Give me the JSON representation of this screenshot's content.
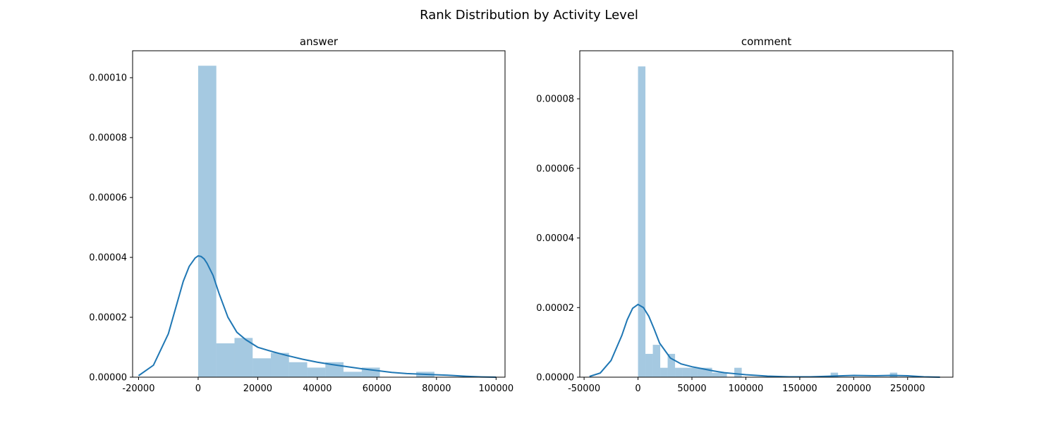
{
  "figure": {
    "title": "Rank Distribution by Activity Level",
    "colors": {
      "bars": "#1f77b4",
      "kde": "#1f77b4"
    }
  },
  "chart_data": [
    {
      "type": "histogram",
      "title": "answer",
      "xlim": [
        -22000,
        103000
      ],
      "ylim": [
        0,
        0.000109
      ],
      "xticks": [
        -20000,
        0,
        20000,
        40000,
        60000,
        80000,
        100000
      ],
      "xtick_labels": [
        "-20000",
        "0",
        "20000",
        "40000",
        "60000",
        "80000",
        "100000"
      ],
      "yticks": [
        0,
        2e-05,
        4e-05,
        6e-05,
        8e-05,
        0.0001
      ],
      "ytick_labels": [
        "0.00000",
        "0.00002",
        "0.00004",
        "0.00006",
        "0.00008",
        "0.00010"
      ],
      "bins": [
        {
          "x0": 0,
          "x1": 6100,
          "density": 0.000104
        },
        {
          "x0": 6100,
          "x1": 12200,
          "density": 1.13e-05
        },
        {
          "x0": 12200,
          "x1": 18300,
          "density": 1.31e-05
        },
        {
          "x0": 18300,
          "x1": 24400,
          "density": 6.3e-06
        },
        {
          "x0": 24400,
          "x1": 30500,
          "density": 8.1e-06
        },
        {
          "x0": 30500,
          "x1": 36600,
          "density": 5e-06
        },
        {
          "x0": 36600,
          "x1": 42700,
          "density": 3.2e-06
        },
        {
          "x0": 42700,
          "x1": 48800,
          "density": 5e-06
        },
        {
          "x0": 48800,
          "x1": 54900,
          "density": 1.8e-06
        },
        {
          "x0": 54900,
          "x1": 61000,
          "density": 3.2e-06
        },
        {
          "x0": 61000,
          "x1": 67100,
          "density": 0.0
        },
        {
          "x0": 67100,
          "x1": 73200,
          "density": 0.0
        },
        {
          "x0": 73200,
          "x1": 79300,
          "density": 1.8e-06
        }
      ],
      "kde": {
        "x": [
          -20000,
          -15000,
          -10000,
          -7000,
          -5000,
          -3000,
          -1000,
          0,
          1000,
          2000,
          3000,
          5000,
          7000,
          10000,
          13000,
          16000,
          20000,
          25000,
          30000,
          35000,
          40000,
          45000,
          50000,
          55000,
          60000,
          65000,
          70000,
          75000,
          80000,
          85000,
          90000,
          95000,
          100000
        ],
        "y": [
          5e-07,
          4e-06,
          1.45e-05,
          2.5e-05,
          3.2e-05,
          3.7e-05,
          3.98e-05,
          4.05e-05,
          4.03e-05,
          3.95e-05,
          3.8e-05,
          3.4e-05,
          2.8e-05,
          2e-05,
          1.5e-05,
          1.25e-05,
          1e-05,
          8.5e-06,
          7.2e-06,
          6e-06,
          5e-06,
          4.2e-06,
          3.5e-06,
          2.8e-06,
          2.2e-06,
          1.6e-06,
          1.2e-06,
          1e-06,
          8e-07,
          6e-07,
          3e-07,
          1e-07,
          0.0
        ]
      }
    },
    {
      "type": "histogram",
      "title": "comment",
      "xlim": [
        -54000,
        292000
      ],
      "ylim": [
        0,
        9.38e-05
      ],
      "xticks": [
        -50000,
        0,
        50000,
        100000,
        150000,
        200000,
        250000
      ],
      "xtick_labels": [
        "-50000",
        "0",
        "50000",
        "100000",
        "150000",
        "200000",
        "250000"
      ],
      "yticks": [
        0,
        2e-05,
        4e-05,
        6e-05,
        8e-05
      ],
      "ytick_labels": [
        "0.00000",
        "0.00002",
        "0.00004",
        "0.00006",
        "0.00008"
      ],
      "bins": [
        {
          "x0": 0,
          "x1": 6870,
          "density": 8.93e-05
        },
        {
          "x0": 6870,
          "x1": 13740,
          "density": 6.7e-06
        },
        {
          "x0": 13740,
          "x1": 20610,
          "density": 9.3e-06
        },
        {
          "x0": 20610,
          "x1": 27480,
          "density": 2.7e-06
        },
        {
          "x0": 27480,
          "x1": 34350,
          "density": 6.7e-06
        },
        {
          "x0": 34350,
          "x1": 41220,
          "density": 2.7e-06
        },
        {
          "x0": 41220,
          "x1": 48090,
          "density": 2.7e-06
        },
        {
          "x0": 48090,
          "x1": 54960,
          "density": 2.7e-06
        },
        {
          "x0": 54960,
          "x1": 61830,
          "density": 2.7e-06
        },
        {
          "x0": 61830,
          "x1": 68700,
          "density": 2.7e-06
        },
        {
          "x0": 68700,
          "x1": 75570,
          "density": 1.3e-06
        },
        {
          "x0": 75570,
          "x1": 82440,
          "density": 1.3e-06
        },
        {
          "x0": 82440,
          "x1": 89310,
          "density": 0.0
        },
        {
          "x0": 89310,
          "x1": 96180,
          "density": 2.7e-06
        },
        {
          "x0": 178620,
          "x1": 185490,
          "density": 1.3e-06
        },
        {
          "x0": 233580,
          "x1": 240450,
          "density": 1.3e-06
        }
      ],
      "kde": {
        "x": [
          -45000,
          -35000,
          -25000,
          -15000,
          -10000,
          -5000,
          0,
          5000,
          10000,
          15000,
          20000,
          30000,
          40000,
          50000,
          60000,
          70000,
          80000,
          90000,
          100000,
          120000,
          140000,
          160000,
          180000,
          200000,
          220000,
          235000,
          250000,
          265000,
          280000
        ],
        "y": [
          2e-07,
          1.2e-06,
          4.8e-06,
          1.2e-05,
          1.65e-05,
          1.98e-05,
          2.09e-05,
          2e-05,
          1.75e-05,
          1.38e-05,
          9.8e-06,
          5.5e-06,
          3.8e-06,
          3e-06,
          2.4e-06,
          1.8e-06,
          1.3e-06,
          1e-06,
          7e-07,
          3e-07,
          1e-07,
          1e-07,
          3e-07,
          5e-07,
          4e-07,
          5e-07,
          4e-07,
          1e-07,
          0.0
        ]
      }
    }
  ]
}
